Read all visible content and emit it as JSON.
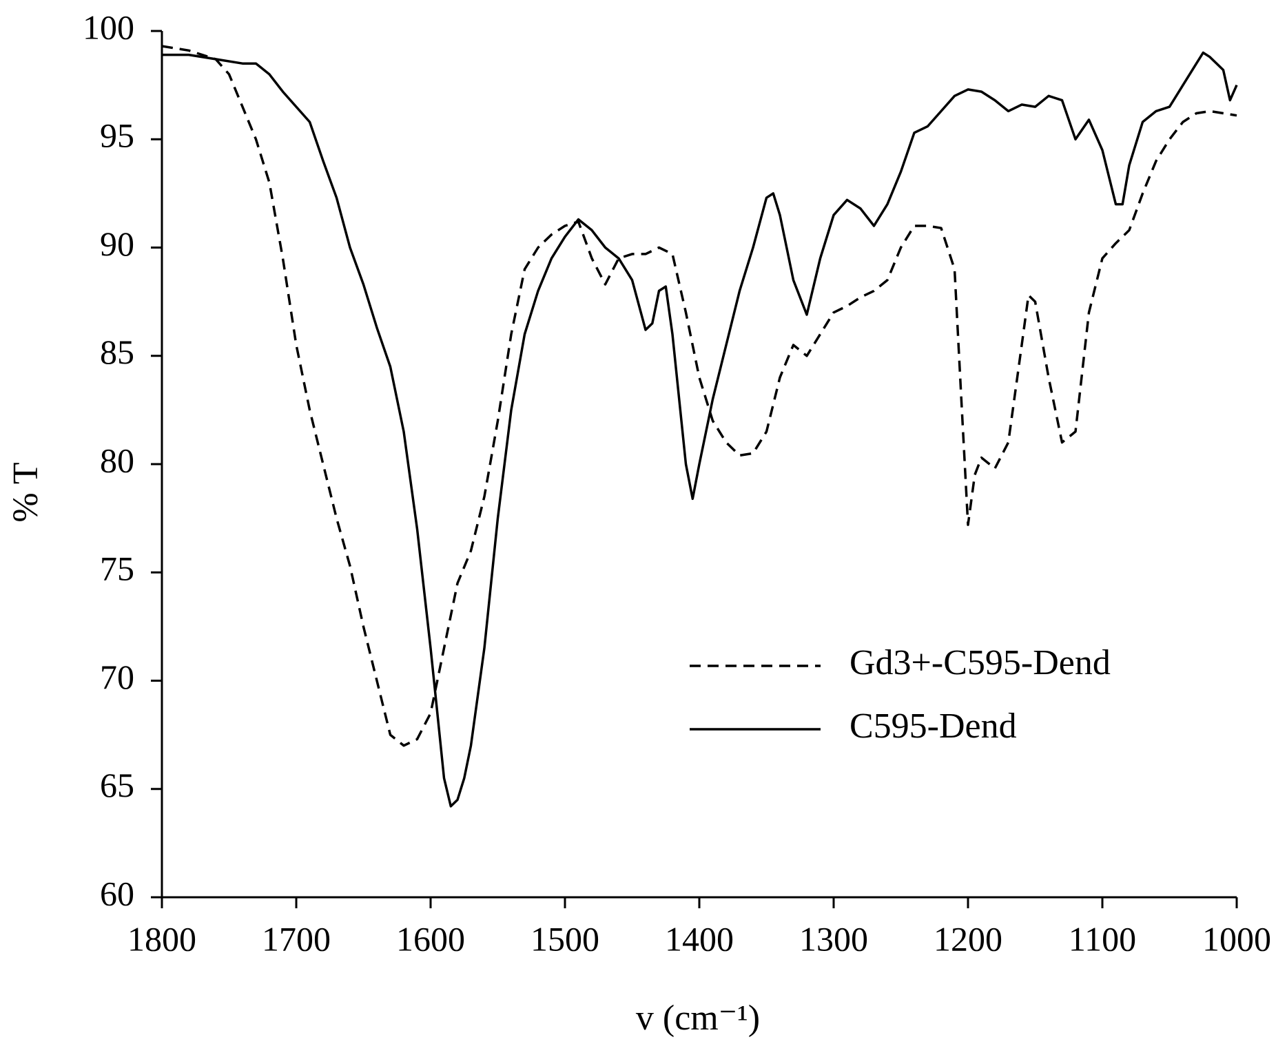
{
  "chart_data": {
    "type": "line",
    "xlabel": "v (cm⁻¹)",
    "ylabel": "% T",
    "xlim": [
      1800,
      1000
    ],
    "xticks": [
      1800,
      1700,
      1600,
      1500,
      1400,
      1300,
      1200,
      1100,
      1000
    ],
    "ylim": [
      60,
      100
    ],
    "yticks": [
      60,
      65,
      70,
      75,
      80,
      85,
      90,
      95,
      100
    ],
    "grid": false,
    "legend": "right",
    "series": [
      {
        "name": "Gd3+-C595-Dend",
        "color": "#000000",
        "linestyle": "dashed",
        "x": [
          1800,
          1780,
          1760,
          1750,
          1740,
          1730,
          1720,
          1710,
          1700,
          1690,
          1680,
          1670,
          1660,
          1650,
          1640,
          1630,
          1620,
          1610,
          1600,
          1590,
          1580,
          1570,
          1560,
          1550,
          1540,
          1530,
          1520,
          1510,
          1500,
          1490,
          1480,
          1470,
          1460,
          1450,
          1440,
          1430,
          1420,
          1410,
          1400,
          1390,
          1380,
          1370,
          1360,
          1350,
          1340,
          1330,
          1320,
          1310,
          1300,
          1290,
          1280,
          1270,
          1260,
          1250,
          1240,
          1230,
          1220,
          1210,
          1205,
          1200,
          1195,
          1190,
          1180,
          1170,
          1160,
          1155,
          1150,
          1140,
          1130,
          1120,
          1110,
          1100,
          1090,
          1080,
          1070,
          1060,
          1050,
          1040,
          1030,
          1020,
          1010,
          1000
        ],
        "values": [
          99.3,
          99.1,
          98.7,
          98.0,
          96.5,
          95.0,
          93.0,
          89.5,
          85.5,
          82.5,
          80.0,
          77.5,
          75.3,
          72.5,
          70.0,
          67.5,
          67.0,
          67.3,
          68.5,
          71.5,
          74.5,
          76.0,
          78.5,
          82.0,
          86.0,
          89.0,
          90.0,
          90.6,
          91.0,
          91.2,
          89.5,
          88.3,
          89.5,
          89.7,
          89.7,
          90.0,
          89.7,
          87.0,
          84.0,
          82.0,
          81.0,
          80.4,
          80.5,
          81.5,
          84.0,
          85.5,
          85.0,
          86.0,
          87.0,
          87.3,
          87.7,
          88.0,
          88.5,
          90.0,
          91.0,
          91.0,
          90.9,
          89.0,
          83.0,
          77.2,
          79.5,
          80.3,
          79.8,
          81.0,
          85.5,
          87.8,
          87.5,
          84.0,
          81.0,
          81.5,
          87.0,
          89.5,
          90.2,
          90.8,
          92.5,
          94.0,
          95.0,
          95.8,
          96.2,
          96.3,
          96.2,
          96.1
        ]
      },
      {
        "name": "C595-Dend",
        "color": "#000000",
        "linestyle": "solid",
        "x": [
          1800,
          1780,
          1760,
          1740,
          1730,
          1720,
          1710,
          1700,
          1690,
          1680,
          1670,
          1660,
          1650,
          1640,
          1630,
          1620,
          1610,
          1600,
          1595,
          1590,
          1585,
          1580,
          1575,
          1570,
          1560,
          1550,
          1540,
          1530,
          1520,
          1510,
          1500,
          1490,
          1480,
          1470,
          1460,
          1450,
          1440,
          1435,
          1430,
          1425,
          1420,
          1410,
          1405,
          1400,
          1390,
          1380,
          1370,
          1360,
          1350,
          1345,
          1340,
          1330,
          1320,
          1310,
          1300,
          1290,
          1280,
          1270,
          1260,
          1250,
          1240,
          1230,
          1220,
          1210,
          1200,
          1190,
          1180,
          1170,
          1160,
          1150,
          1140,
          1130,
          1120,
          1110,
          1100,
          1090,
          1085,
          1080,
          1070,
          1060,
          1050,
          1040,
          1030,
          1025,
          1020,
          1010,
          1005,
          1000
        ],
        "values": [
          98.9,
          98.9,
          98.7,
          98.5,
          98.5,
          98.0,
          97.2,
          96.5,
          95.8,
          94.0,
          92.3,
          90.0,
          88.3,
          86.3,
          84.5,
          81.5,
          77.0,
          71.5,
          68.5,
          65.5,
          64.2,
          64.5,
          65.5,
          67.0,
          71.5,
          77.5,
          82.5,
          86.0,
          88.0,
          89.5,
          90.5,
          91.3,
          90.8,
          90.0,
          89.5,
          88.5,
          86.2,
          86.5,
          88.0,
          88.2,
          86.0,
          80.0,
          78.4,
          80.0,
          83.0,
          85.5,
          88.0,
          90.0,
          92.3,
          92.5,
          91.5,
          88.5,
          86.9,
          89.5,
          91.5,
          92.2,
          91.8,
          91.0,
          92.0,
          93.5,
          95.3,
          95.6,
          96.3,
          97.0,
          97.3,
          97.2,
          96.8,
          96.3,
          96.6,
          96.5,
          97.0,
          96.8,
          95.0,
          95.9,
          94.5,
          92.0,
          92.0,
          93.8,
          95.8,
          96.3,
          96.5,
          97.5,
          98.5,
          99.0,
          98.8,
          98.2,
          96.8,
          97.5
        ]
      }
    ]
  }
}
